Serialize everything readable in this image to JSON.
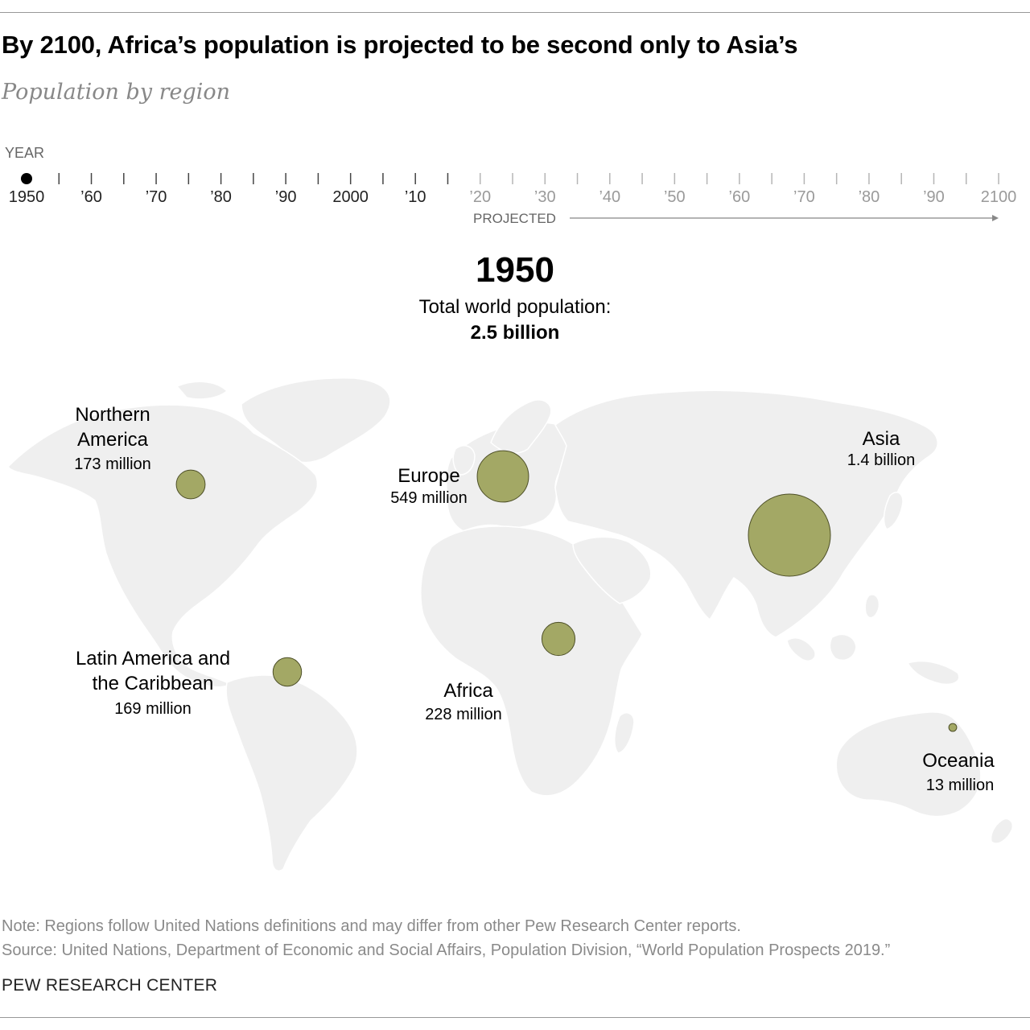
{
  "header": {
    "title": "By 2100, Africa’s population is projected to be second only to Asia’s",
    "subtitle": "Population by region"
  },
  "timeline": {
    "label": "YEAR",
    "tick_labels": [
      "1950",
      "’60",
      "’70",
      "’80",
      "’90",
      "2000",
      "’10",
      "’20",
      "’30",
      "’40",
      "’50",
      "’60",
      "’70",
      "’80",
      "’90",
      "2100"
    ],
    "start_year": 1950,
    "end_year": 2100,
    "selected_year": 1950,
    "projected_from_year": 2020,
    "projected_label": "PROJECTED"
  },
  "summary": {
    "year": "1950",
    "total_label": "Total world population:",
    "total_value": "2.5 billion"
  },
  "chart_data": {
    "type": "map-bubble",
    "year": 1950,
    "regions": [
      {
        "name": "Northern America",
        "label_lines": [
          "Northern",
          "America"
        ],
        "value_text": "173 million",
        "population_millions": 173
      },
      {
        "name": "Europe",
        "label_lines": [
          "Europe"
        ],
        "value_text": "549 million",
        "population_millions": 549
      },
      {
        "name": "Asia",
        "label_lines": [
          "Asia"
        ],
        "value_text": "1.4 billion",
        "population_millions": 1400
      },
      {
        "name": "Latin America and the Caribbean",
        "label_lines": [
          "Latin America and",
          "the Caribbean"
        ],
        "value_text": "169 million",
        "population_millions": 169
      },
      {
        "name": "Africa",
        "label_lines": [
          "Africa"
        ],
        "value_text": "228 million",
        "population_millions": 228
      },
      {
        "name": "Oceania",
        "label_lines": [
          "Oceania"
        ],
        "value_text": "13 million",
        "population_millions": 13
      }
    ],
    "colors": {
      "bubble": "#a3a865",
      "bubble_stroke": "#4e5028",
      "land": "#efefef"
    }
  },
  "footer": {
    "note": "Note: Regions follow United Nations definitions and may differ from other Pew Research Center reports.",
    "source": "Source: United Nations, Department of Economic and Social Affairs, Population Division, “World Population Prospects 2019.”",
    "brand": "PEW RESEARCH CENTER"
  }
}
